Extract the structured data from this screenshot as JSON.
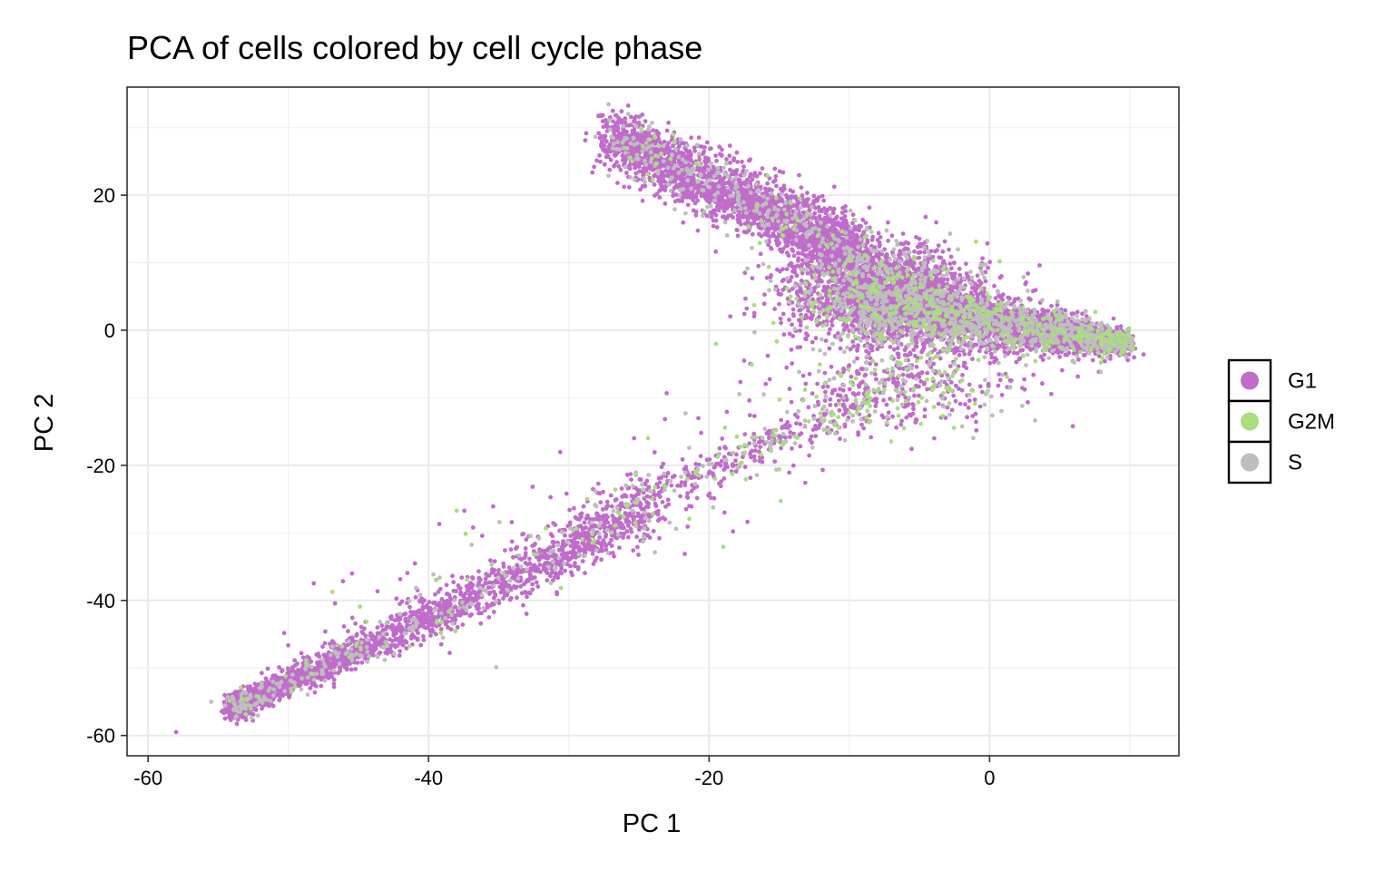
{
  "chart_data": {
    "type": "scatter",
    "title": "PCA of cells colored by cell cycle phase",
    "xlabel": "PC 1",
    "ylabel": "PC 2",
    "xlim": [
      -61.5,
      13.5
    ],
    "ylim": [
      -63,
      36
    ],
    "xticks": [
      -60,
      -40,
      -20,
      0
    ],
    "yticks": [
      -60,
      -40,
      -20,
      0,
      20
    ],
    "grid": true,
    "legend_position": "right",
    "series": [
      {
        "name": "G1",
        "color": "#c06ccb"
      },
      {
        "name": "G2M",
        "color": "#a9dd7f"
      },
      {
        "name": "S",
        "color": "#bebebe"
      }
    ],
    "point_seed": 20240601
  }
}
